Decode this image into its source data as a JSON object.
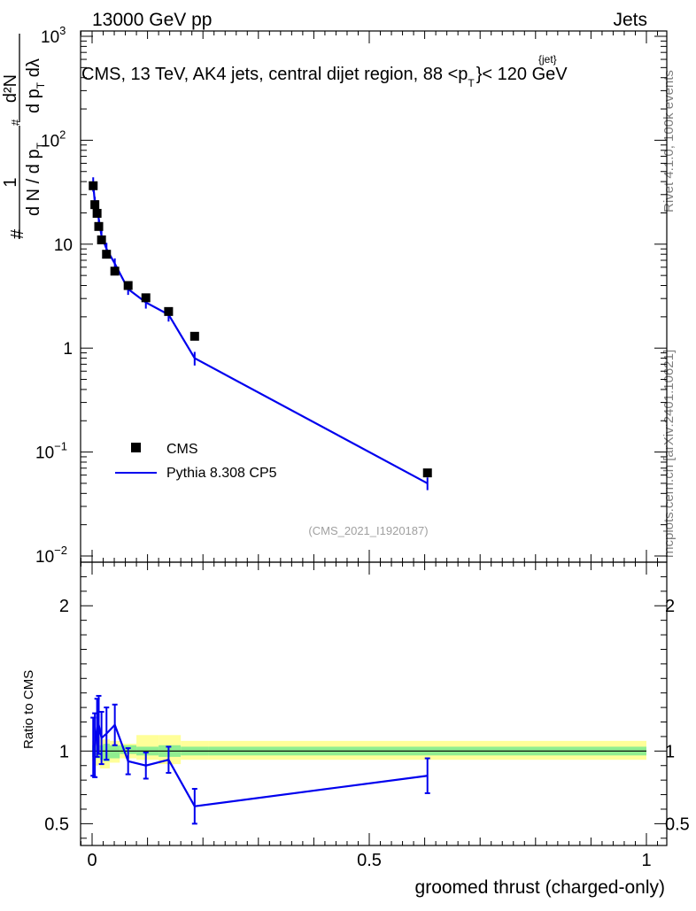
{
  "header": {
    "energy": "13000 GeV pp",
    "process": "Jets"
  },
  "side_labels": {
    "rivet": "Rivet 4.1.0,  100k events",
    "mcplots": "mcplots.cern.ch [arXiv:2401.10621]"
  },
  "colors": {
    "data": "#000000",
    "mc": "#0000ee",
    "band_inner": "#90ee90",
    "band_outer": "#ffff99"
  },
  "chart_data": {
    "type": "line",
    "title_prefix": "CMS, 13 TeV, AK4 jets, central dijet region, 88 <p",
    "title_sup": "{jet}",
    "title_sub": "T",
    "title_suffix": "}< 120 GeV",
    "watermark": "(CMS_2021_I1920187)",
    "xlabel": "groomed thrust (charged-only)",
    "ylabel_main": {
      "prefix": "#",
      "frac1_num": "1",
      "frac1_den": "d N / d p",
      "frac1_den_sub": "T",
      "frac2_num": "d²N",
      "frac2_num_sup": "#",
      "frac2_den": "d p",
      "frac2_den_sub": "T",
      "frac2_den_tail": " dλ"
    },
    "ylabel_ratio": "Ratio to CMS",
    "xlim": [
      0,
      1
    ],
    "ylim_main": [
      0.01,
      1000
    ],
    "ylim_ratio": [
      0.35,
      2.3
    ],
    "yscale_main": "log",
    "x_ticks": [
      {
        "value": 0,
        "label": "0"
      },
      {
        "value": 0.5,
        "label": "0.5"
      },
      {
        "value": 1,
        "label": "1"
      }
    ],
    "y_ticks_main": [
      {
        "value": 1000,
        "label": "10",
        "exp": "3"
      },
      {
        "value": 100,
        "label": "10",
        "exp": "2"
      },
      {
        "value": 10,
        "label": "10",
        "exp": ""
      },
      {
        "value": 1,
        "label": "1",
        "exp": ""
      },
      {
        "value": 0.1,
        "label": "10",
        "exp": "−1"
      },
      {
        "value": 0.01,
        "label": "10",
        "exp": "−2"
      }
    ],
    "y_ticks_ratio": [
      {
        "value": 0.5,
        "label": "0.5"
      },
      {
        "value": 1,
        "label": "1"
      },
      {
        "value": 2,
        "label": "2"
      }
    ],
    "legend": [
      {
        "label": "CMS",
        "kind": "marker"
      },
      {
        "label": "Pythia 8.308 CP5",
        "kind": "line"
      }
    ],
    "data_points": [
      {
        "x": 0.002,
        "y": 36.5
      },
      {
        "x": 0.005,
        "y": 24.0
      },
      {
        "x": 0.009,
        "y": 19.8
      },
      {
        "x": 0.012,
        "y": 14.8
      },
      {
        "x": 0.017,
        "y": 11.0
      },
      {
        "x": 0.026,
        "y": 8.0
      },
      {
        "x": 0.041,
        "y": 5.5
      },
      {
        "x": 0.065,
        "y": 4.0
      },
      {
        "x": 0.097,
        "y": 3.05
      },
      {
        "x": 0.138,
        "y": 2.25
      },
      {
        "x": 0.185,
        "y": 1.3
      },
      {
        "x": 0.605,
        "y": 0.063
      }
    ],
    "data_bins": [
      [
        0.0,
        0.004
      ],
      [
        0.004,
        0.007
      ],
      [
        0.007,
        0.011
      ],
      [
        0.011,
        0.014
      ],
      [
        0.014,
        0.02
      ],
      [
        0.02,
        0.032
      ],
      [
        0.032,
        0.05
      ],
      [
        0.05,
        0.08
      ],
      [
        0.08,
        0.12
      ],
      [
        0.12,
        0.16
      ],
      [
        0.16,
        0.21
      ],
      [
        0.21,
        1.0
      ]
    ],
    "band_inner": [
      [
        0.96,
        1.04
      ],
      [
        0.94,
        1.05
      ],
      [
        0.95,
        1.04
      ],
      [
        0.95,
        1.04
      ],
      [
        0.94,
        1.04
      ],
      [
        0.93,
        1.05
      ],
      [
        0.95,
        1.04
      ],
      [
        0.98,
        1.04
      ],
      [
        0.97,
        1.03
      ],
      [
        0.96,
        1.04
      ],
      [
        0.97,
        1.03
      ],
      [
        0.97,
        1.03
      ]
    ],
    "band_outer": [
      [
        0.93,
        1.07
      ],
      [
        0.9,
        1.1
      ],
      [
        0.9,
        1.1
      ],
      [
        0.91,
        1.1
      ],
      [
        0.88,
        1.08
      ],
      [
        0.88,
        1.08
      ],
      [
        0.92,
        1.07
      ],
      [
        0.95,
        1.05
      ],
      [
        0.94,
        1.11
      ],
      [
        0.91,
        1.11
      ],
      [
        0.94,
        1.07
      ],
      [
        0.94,
        1.07
      ]
    ],
    "mc_points": [
      {
        "x": 0.002,
        "y": 38.0,
        "err": 6.0
      },
      {
        "x": 0.005,
        "y": 25.0,
        "err": 3.5
      },
      {
        "x": 0.009,
        "y": 23.0,
        "err": 3.5
      },
      {
        "x": 0.012,
        "y": 17.5,
        "err": 2.5
      },
      {
        "x": 0.017,
        "y": 12.0,
        "err": 1.8
      },
      {
        "x": 0.026,
        "y": 9.0,
        "err": 1.3
      },
      {
        "x": 0.041,
        "y": 6.5,
        "err": 0.8
      },
      {
        "x": 0.065,
        "y": 3.7,
        "err": 0.45
      },
      {
        "x": 0.097,
        "y": 2.75,
        "err": 0.35
      },
      {
        "x": 0.138,
        "y": 2.1,
        "err": 0.3
      },
      {
        "x": 0.185,
        "y": 0.8,
        "err": 0.12
      },
      {
        "x": 0.605,
        "y": 0.05,
        "err": 0.007
      }
    ],
    "ratio_points": [
      {
        "x": 0.002,
        "y": 1.03,
        "err": 0.2
      },
      {
        "x": 0.005,
        "y": 1.04,
        "err": 0.22
      },
      {
        "x": 0.009,
        "y": 1.16,
        "err": 0.2
      },
      {
        "x": 0.012,
        "y": 1.18,
        "err": 0.2
      },
      {
        "x": 0.017,
        "y": 1.09,
        "err": 0.18
      },
      {
        "x": 0.026,
        "y": 1.12,
        "err": 0.18
      },
      {
        "x": 0.041,
        "y": 1.18,
        "err": 0.14
      },
      {
        "x": 0.065,
        "y": 0.93,
        "err": 0.09
      },
      {
        "x": 0.097,
        "y": 0.9,
        "err": 0.09
      },
      {
        "x": 0.138,
        "y": 0.94,
        "err": 0.09
      },
      {
        "x": 0.185,
        "y": 0.62,
        "err": 0.12
      },
      {
        "x": 0.605,
        "y": 0.83,
        "err": 0.12
      }
    ]
  }
}
